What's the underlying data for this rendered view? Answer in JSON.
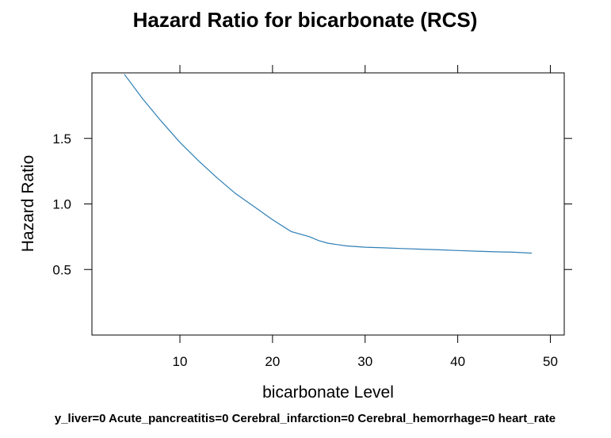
{
  "chart_data": {
    "type": "line",
    "title": "Hazard Ratio for bicarbonate (RCS)",
    "xlabel": "bicarbonate Level",
    "ylabel": "Hazard Ratio",
    "footnote": "y_liver=0 Acute_pancreatitis=0 Cerebral_infarction=0 Cerebral_hemorrhage=0 heart_rate",
    "xlim": [
      0.5,
      51.5
    ],
    "ylim": [
      0.0,
      2.0
    ],
    "x_ticks": [
      10,
      20,
      30,
      40,
      50
    ],
    "y_ticks": [
      0.5,
      1.0,
      1.5
    ],
    "grid": false,
    "series": [
      {
        "color": "#2f7fb5",
        "x": [
          4,
          6,
          8,
          10,
          12,
          14,
          16,
          18,
          20,
          22,
          24,
          25,
          26,
          27,
          28,
          30,
          32,
          34,
          36,
          38,
          40,
          42,
          44,
          46,
          48
        ],
        "y": [
          1.99,
          1.8,
          1.63,
          1.47,
          1.33,
          1.2,
          1.08,
          0.98,
          0.88,
          0.79,
          0.75,
          0.72,
          0.7,
          0.69,
          0.68,
          0.67,
          0.665,
          0.66,
          0.655,
          0.65,
          0.645,
          0.64,
          0.635,
          0.632,
          0.625
        ]
      }
    ]
  }
}
